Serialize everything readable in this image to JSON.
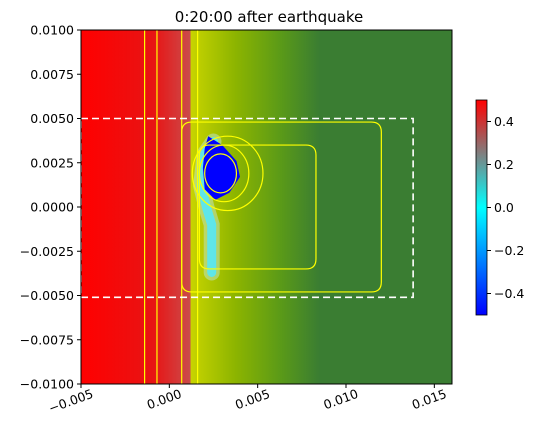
{
  "chart_data": {
    "type": "heatmap",
    "title": "0:20:00 after earthquake",
    "xlabel": "",
    "ylabel": "",
    "xlim": [
      -0.005,
      0.016
    ],
    "ylim": [
      -0.01,
      0.01
    ],
    "x_ticks": [
      -0.005,
      0.0,
      0.005,
      0.01,
      0.015
    ],
    "x_tick_labels": [
      "−0.005",
      "0.000",
      "0.005",
      "0.010",
      "0.015"
    ],
    "y_ticks": [
      0.01,
      0.0075,
      0.005,
      0.0025,
      0.0,
      -0.0025,
      -0.005,
      -0.0075,
      -0.01
    ],
    "y_tick_labels": [
      "0.0100",
      "0.0075",
      "0.0050",
      "0.0025",
      "0.0000",
      "−0.0025",
      "−0.0050",
      "−0.0075",
      "−0.0100"
    ],
    "x_tick_rotation_deg": 20,
    "grid": false,
    "colorbar": {
      "range": [
        -0.5,
        0.5
      ],
      "ticks": [
        0.4,
        0.2,
        0.0,
        -0.2,
        -0.4
      ],
      "tick_labels": [
        "0.4",
        "0.2",
        "0.0",
        "−0.2",
        "−0.4"
      ],
      "colors": [
        "#0000ff",
        "#00ffff",
        "#ff0000"
      ]
    },
    "field_regions": {
      "land_color": "#3a7d32",
      "water_high_color": "#ff0000",
      "shore_x": 0.0025,
      "dark_patch_center": [
        0.0028,
        0.002
      ]
    },
    "dashed_box": {
      "x": [
        -0.005,
        0.0138
      ],
      "y": [
        -0.0051,
        0.005
      ],
      "color": "#ffffff"
    },
    "contour_color": "#ffff00",
    "contour_verticals_x": [
      -0.0014,
      -0.0007,
      0.0007,
      0.0016
    ],
    "contour_rings": [
      {
        "cx": 0.0029,
        "cy": 0.0019,
        "rx": 0.0009,
        "ry": 0.0011
      },
      {
        "cx": 0.0031,
        "cy": 0.0019,
        "rx": 0.0014,
        "ry": 0.0016
      },
      {
        "cx": 0.0033,
        "cy": 0.0019,
        "rx": 0.002,
        "ry": 0.0021
      }
    ],
    "contour_box_outer": {
      "x": [
        0.0007,
        0.012
      ],
      "y": [
        -0.0048,
        0.0048
      ]
    },
    "contour_box_inner": {
      "x": [
        0.0017,
        0.0083
      ],
      "y": [
        -0.0035,
        0.0035
      ]
    }
  }
}
